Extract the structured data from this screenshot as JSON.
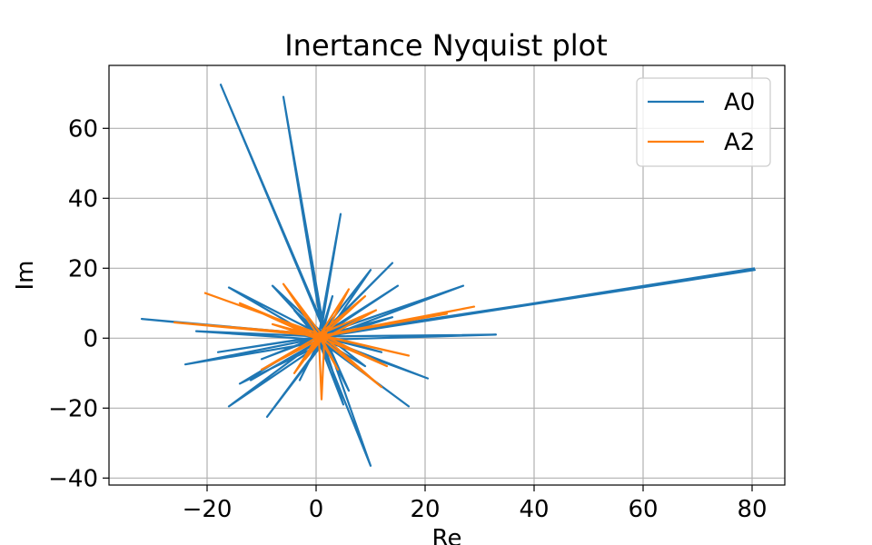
{
  "chart_data": {
    "type": "line",
    "title": "Inertance Nyquist plot",
    "xlabel": "Re",
    "ylabel": "Im",
    "xlim": [
      -38,
      86
    ],
    "ylim": [
      -42,
      78
    ],
    "xticks": [
      -20,
      0,
      20,
      40,
      60,
      80
    ],
    "yticks": [
      -40,
      -20,
      0,
      20,
      40,
      60
    ],
    "xtick_labels": [
      "−20",
      "0",
      "20",
      "40",
      "60",
      "80"
    ],
    "ytick_labels": [
      "−40",
      "−20",
      "0",
      "20",
      "40",
      "60"
    ],
    "grid": true,
    "legend_position": "top-right",
    "series": [
      {
        "name": "A0",
        "color": "#1f77b4",
        "x": [
          80.5,
          0.5,
          80.5,
          2.0,
          -17.5,
          1.5,
          -6,
          1.0,
          4.5,
          0.5,
          -32,
          2.0,
          -24,
          1.0,
          -16,
          1.5,
          33,
          0.5,
          27,
          1.0,
          14,
          0.5,
          20.5,
          2.0,
          10,
          1.0,
          -9,
          1.5,
          -16,
          0.5,
          17,
          1.0,
          10,
          0.5,
          -8,
          1.5,
          15,
          0.5,
          -22,
          1.0,
          14,
          0.5,
          -14,
          2.0,
          6,
          1.0,
          -3,
          0.5,
          5,
          1.0,
          -10,
          0.5,
          12,
          1.5,
          -4,
          0.5,
          3,
          1.0,
          -18,
          0.5,
          8,
          1.0,
          -12,
          2.0,
          9,
          0.5
        ],
        "y": [
          20,
          0.2,
          19.5,
          1.0,
          72.5,
          2.0,
          69,
          3.0,
          35.5,
          1.0,
          5.5,
          0.5,
          -7.5,
          -1.0,
          14.5,
          0.5,
          1,
          -0.5,
          15,
          1.0,
          21.5,
          0.5,
          -11.5,
          -1.0,
          -36.5,
          -1.5,
          -22.5,
          -1.0,
          -19.5,
          -0.5,
          -19.5,
          -1.0,
          19.5,
          0.5,
          15,
          1.0,
          15,
          0.5,
          2,
          -0.5,
          6,
          0.5,
          -13,
          -1.0,
          -15,
          0.5,
          -12,
          -1.0,
          -19,
          0.5,
          -6,
          0.5,
          -4,
          0.5,
          8,
          -0.5,
          12,
          0.5,
          -4,
          0.5,
          6,
          -0.5,
          -12,
          0.5,
          -8,
          0.0
        ]
      },
      {
        "name": "A2",
        "color": "#ff7f0e",
        "x": [
          -20.5,
          1.0,
          -26,
          1.5,
          29,
          2.0,
          24,
          0.5,
          -6,
          1.0,
          12,
          0.5,
          -14,
          1.5,
          1,
          0.5,
          13,
          1.0,
          -10,
          1.5,
          17,
          0.5,
          -4,
          1.0,
          9,
          0.5,
          11,
          1.0,
          -8,
          0.5,
          6,
          1.5,
          -2,
          0.5,
          4,
          1.0
        ],
        "y": [
          13,
          1.0,
          4.5,
          0.5,
          9,
          1.0,
          7,
          0.5,
          15.5,
          1.0,
          -14,
          0.5,
          10,
          -1.0,
          -17.5,
          0.5,
          -8,
          1.0,
          -9,
          0.5,
          -5,
          1.0,
          -10,
          0.5,
          12,
          1.0,
          8,
          -0.5,
          4,
          0.5,
          14,
          0.5,
          -6,
          0.5,
          -9,
          0.0
        ]
      }
    ]
  }
}
